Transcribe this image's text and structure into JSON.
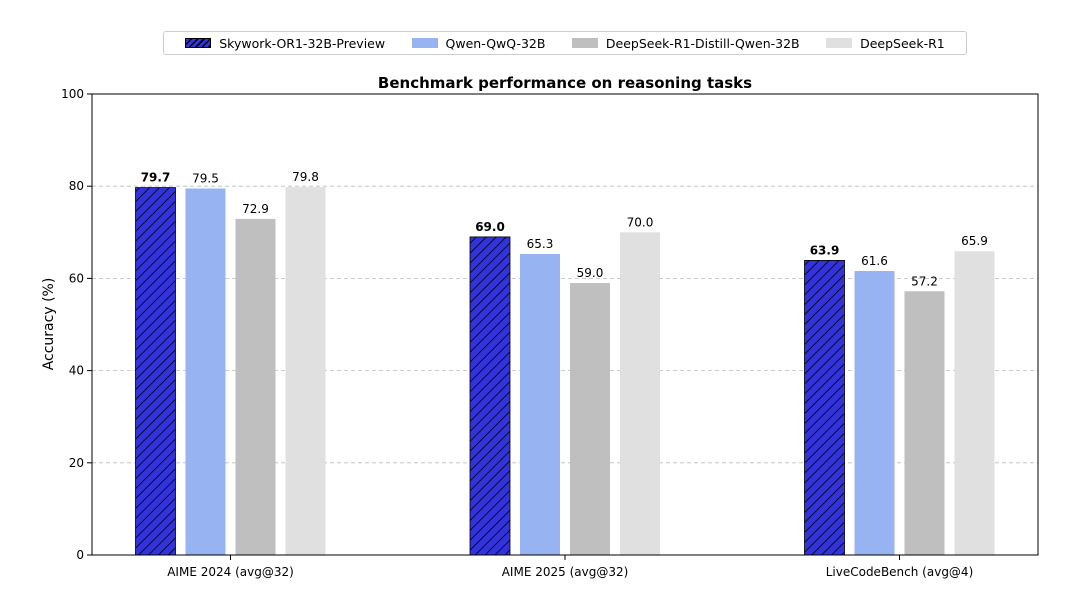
{
  "chart_data": {
    "type": "bar",
    "title": "Benchmark performance on reasoning tasks",
    "ylabel": "Accuracy (%)",
    "xlabel": "",
    "ylim": [
      0,
      100
    ],
    "yticks": [
      0,
      20,
      40,
      60,
      80,
      100
    ],
    "grid": "horizontal dashed",
    "legend_position": "top-center",
    "categories": [
      "AIME 2024 (avg@32)",
      "AIME 2025 (avg@32)",
      "LiveCodeBench (avg@4)"
    ],
    "series": [
      {
        "name": "Skywork-OR1-32B-Preview",
        "values": [
          79.7,
          69.0,
          63.9
        ],
        "labels": [
          "79.7",
          "69.0",
          "63.9"
        ],
        "color": "#3333dd",
        "hatch": true,
        "bold_labels": true
      },
      {
        "name": "Qwen-QwQ-32B",
        "values": [
          79.5,
          65.3,
          61.6
        ],
        "labels": [
          "79.5",
          "65.3",
          "61.6"
        ],
        "color": "#97b3f1",
        "hatch": false,
        "bold_labels": false
      },
      {
        "name": "DeepSeek-R1-Distill-Qwen-32B",
        "values": [
          72.9,
          59.0,
          57.2
        ],
        "labels": [
          "72.9",
          "59.0",
          "57.2"
        ],
        "color": "#bfbfbf",
        "hatch": false,
        "bold_labels": false
      },
      {
        "name": "DeepSeek-R1",
        "values": [
          79.8,
          70.0,
          65.9
        ],
        "labels": [
          "79.8",
          "70.0",
          "65.9"
        ],
        "color": "#e0e0e0",
        "hatch": false,
        "bold_labels": false
      }
    ]
  }
}
